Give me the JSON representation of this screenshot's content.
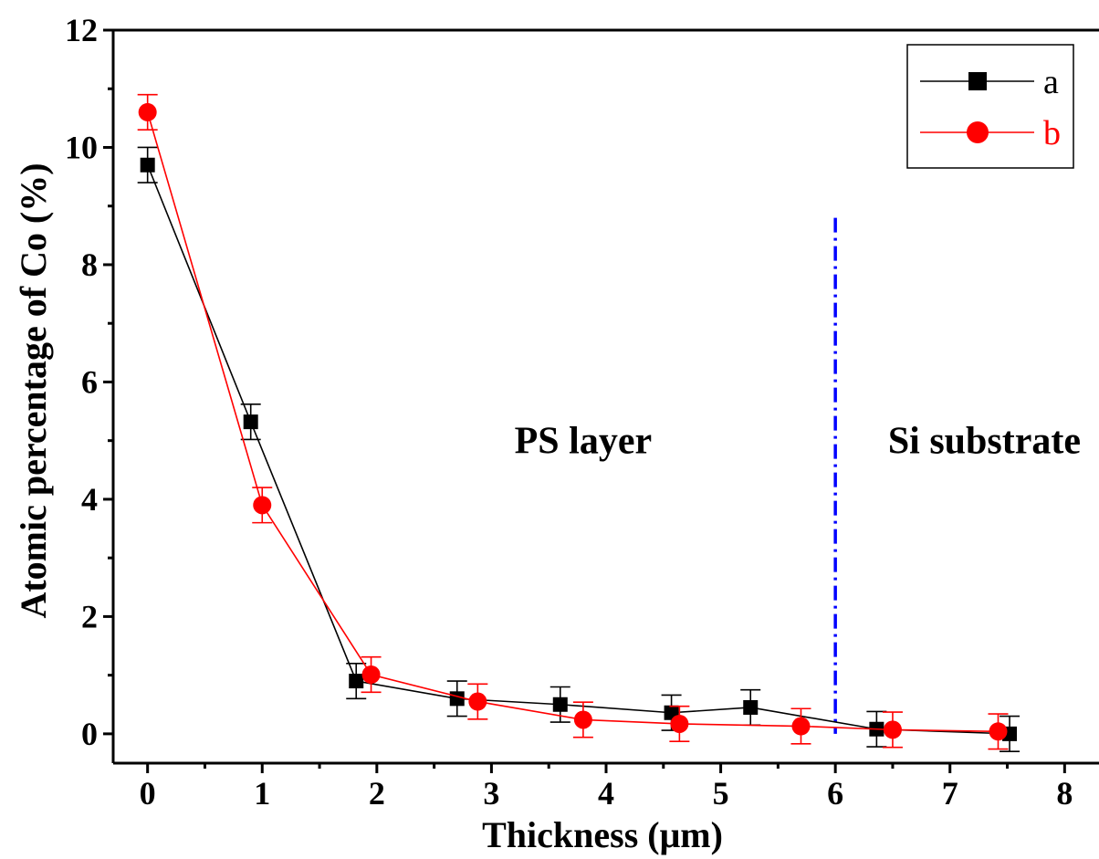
{
  "chart_data": {
    "type": "scatter",
    "xlabel": "Thickness (μm)",
    "ylabel": "Atomic percentage of Co (%)",
    "xlim": [
      -0.3,
      8.3
    ],
    "ylim": [
      -0.5,
      12
    ],
    "xticks": [
      0,
      1,
      2,
      3,
      4,
      5,
      6,
      7,
      8
    ],
    "xtick_labels": [
      "0",
      "1",
      "2",
      "3",
      "4",
      "5",
      "6",
      "7",
      "8"
    ],
    "yticks": [
      0,
      2,
      4,
      6,
      8,
      10,
      12
    ],
    "ytick_labels": [
      "0",
      "2",
      "4",
      "6",
      "8",
      "10",
      "12"
    ],
    "grid": false,
    "legend_position": "top-right",
    "series": [
      {
        "name": "a",
        "color": "#000000",
        "marker": "square",
        "x": [
          0,
          0.9,
          1.82,
          2.7,
          3.6,
          4.57,
          5.26,
          6.36,
          7.52
        ],
        "y": [
          9.7,
          5.32,
          0.9,
          0.6,
          0.5,
          0.36,
          0.45,
          0.08,
          0.0
        ],
        "err": [
          0.3,
          0.3,
          0.3,
          0.3,
          0.3,
          0.3,
          0.3,
          0.3,
          0.3
        ]
      },
      {
        "name": "b",
        "color": "#ff0000",
        "marker": "circle",
        "x": [
          0,
          1.0,
          1.95,
          2.88,
          3.8,
          4.64,
          5.7,
          6.5,
          7.42
        ],
        "y": [
          10.6,
          3.9,
          1.01,
          0.55,
          0.24,
          0.17,
          0.13,
          0.07,
          0.04
        ],
        "err": [
          0.3,
          0.3,
          0.3,
          0.3,
          0.3,
          0.3,
          0.3,
          0.3,
          0.3
        ]
      }
    ],
    "annotations": [
      {
        "text": "PS layer",
        "x": 3.8,
        "y": 5.0
      },
      {
        "text": "Si substrate",
        "x": 7.3,
        "y": 5.0
      }
    ],
    "divider": {
      "x": 6.0,
      "y_range": [
        0,
        8.8
      ],
      "color": "#0000ff",
      "style": "dash-dot"
    }
  }
}
